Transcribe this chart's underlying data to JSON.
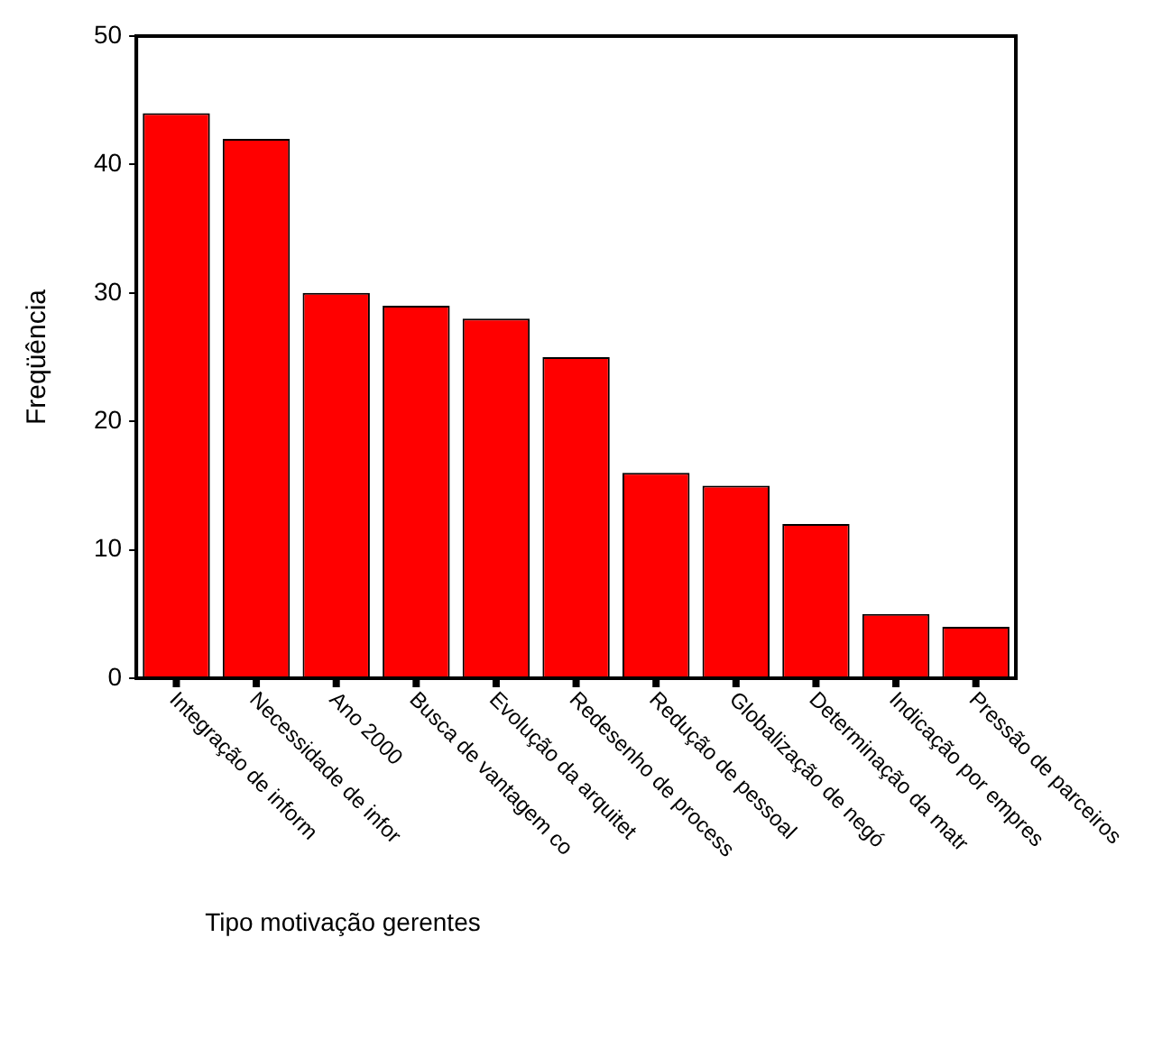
{
  "chart_data": {
    "type": "bar",
    "xlabel": "Tipo motivação gerentes",
    "ylabel": "Freqüência",
    "categories": [
      "Integração de inform",
      "Necessidade de infor",
      "Ano 2000",
      "Busca de vantagem co",
      "Evolução da arquitet",
      "Redesenho de process",
      "Redução de pessoal",
      "Globalização de negó",
      "Determinação da matr",
      "Indicação por empres",
      "Pressão de parceiros"
    ],
    "values": [
      44,
      42,
      30,
      29,
      28,
      25,
      16,
      15,
      12,
      5,
      4
    ],
    "color": "#ff0000",
    "ylim": [
      0,
      50
    ],
    "yticks": [
      0,
      10,
      20,
      30,
      40,
      50
    ],
    "grid": false,
    "legend": false
  }
}
